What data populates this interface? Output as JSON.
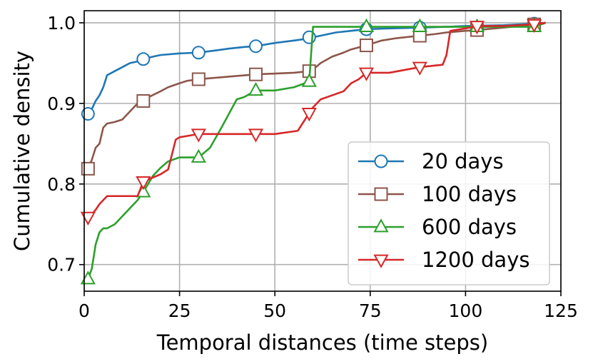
{
  "chart_data": {
    "type": "line",
    "xlabel": "Temporal distances (time steps)",
    "ylabel": "Cumulative density",
    "xlim": [
      0,
      125
    ],
    "ylim": [
      0.667,
      1.015
    ],
    "xticks": [
      0,
      25,
      50,
      75,
      100,
      125
    ],
    "xtick_labels": [
      "0",
      "25",
      "50",
      "75",
      "100",
      "125"
    ],
    "yticks": [
      0.7,
      0.8,
      0.9,
      1.0
    ],
    "ytick_labels": [
      "0.7",
      "0.8",
      "0.9",
      "1.0"
    ],
    "grid": true,
    "legend_position": "lower-right",
    "series": [
      {
        "name": "20 days",
        "color": "#1f77b4",
        "marker": "circle",
        "x": [
          1,
          2,
          3,
          4,
          5,
          6,
          8,
          10,
          12,
          14,
          15.5,
          18,
          20,
          25,
          30,
          35,
          38,
          42,
          45,
          50,
          55,
          58,
          60,
          63,
          66,
          70,
          74,
          80,
          88,
          95,
          100,
          110,
          118,
          121
        ],
        "y": [
          0.887,
          0.893,
          0.903,
          0.91,
          0.92,
          0.935,
          0.94,
          0.945,
          0.95,
          0.952,
          0.955,
          0.958,
          0.96,
          0.962,
          0.963,
          0.966,
          0.968,
          0.97,
          0.971,
          0.975,
          0.978,
          0.98,
          0.982,
          0.985,
          0.988,
          0.99,
          0.992,
          0.993,
          0.994,
          0.995,
          0.996,
          0.997,
          0.999,
          1.0
        ],
        "marker_x": [
          1,
          15.5,
          30,
          45,
          59,
          74,
          88,
          118
        ],
        "marker_y": [
          0.887,
          0.955,
          0.963,
          0.971,
          0.982,
          0.992,
          0.994,
          0.999
        ]
      },
      {
        "name": "100 days",
        "color": "#8c564b",
        "marker": "square",
        "x": [
          1,
          2,
          3,
          4,
          5,
          6,
          8,
          10,
          12,
          13,
          14,
          15.5,
          17,
          20,
          22,
          25,
          27,
          30,
          35,
          40,
          45,
          50,
          55,
          59,
          60,
          62,
          65,
          68,
          70,
          74,
          78,
          82,
          88,
          92,
          95,
          100,
          103,
          110,
          118,
          121
        ],
        "y": [
          0.819,
          0.83,
          0.845,
          0.85,
          0.87,
          0.875,
          0.877,
          0.88,
          0.89,
          0.895,
          0.9,
          0.903,
          0.908,
          0.915,
          0.92,
          0.925,
          0.928,
          0.93,
          0.932,
          0.934,
          0.936,
          0.937,
          0.938,
          0.94,
          0.942,
          0.95,
          0.958,
          0.963,
          0.967,
          0.972,
          0.978,
          0.981,
          0.984,
          0.986,
          0.988,
          0.99,
          0.991,
          0.994,
          0.998,
          1.0
        ],
        "marker_x": [
          1,
          15.5,
          30,
          45,
          59,
          74,
          88,
          103,
          118
        ],
        "marker_y": [
          0.819,
          0.903,
          0.93,
          0.936,
          0.94,
          0.972,
          0.984,
          0.991,
          0.998
        ]
      },
      {
        "name": "600 days",
        "color": "#2ca02c",
        "marker": "triangle-up",
        "x": [
          1,
          2,
          3,
          4,
          5,
          6,
          8,
          10,
          12,
          14,
          15.5,
          18,
          20,
          22,
          25,
          30,
          33,
          36,
          40,
          42,
          45,
          50,
          55,
          59,
          60,
          65,
          70,
          74,
          80,
          88,
          95,
          100,
          103,
          110,
          118,
          121
        ],
        "y": [
          0.682,
          0.695,
          0.725,
          0.74,
          0.745,
          0.745,
          0.75,
          0.76,
          0.77,
          0.78,
          0.79,
          0.81,
          0.82,
          0.828,
          0.833,
          0.833,
          0.845,
          0.87,
          0.905,
          0.908,
          0.916,
          0.916,
          0.92,
          0.927,
          0.995,
          0.995,
          0.995,
          0.995,
          0.995,
          0.995,
          0.995,
          0.995,
          0.995,
          0.995,
          0.995,
          1.0
        ],
        "marker_x": [
          1,
          15.5,
          30,
          45,
          59,
          74,
          88,
          103,
          118
        ],
        "marker_y": [
          0.682,
          0.79,
          0.833,
          0.916,
          0.927,
          0.995,
          0.995,
          0.995,
          0.995
        ]
      },
      {
        "name": "1200 days",
        "color": "#d62728",
        "marker": "triangle-down",
        "x": [
          1,
          2,
          3,
          4,
          5,
          6,
          10,
          14,
          15.5,
          18,
          20,
          22,
          24,
          25,
          30,
          35,
          40,
          45,
          50,
          56,
          59,
          60,
          62,
          65,
          68,
          70,
          72,
          74,
          80,
          88,
          94,
          95,
          96,
          100,
          103,
          110,
          118,
          121
        ],
        "y": [
          0.759,
          0.762,
          0.768,
          0.775,
          0.78,
          0.785,
          0.785,
          0.785,
          0.803,
          0.808,
          0.812,
          0.818,
          0.855,
          0.858,
          0.862,
          0.862,
          0.862,
          0.862,
          0.862,
          0.866,
          0.888,
          0.895,
          0.905,
          0.91,
          0.915,
          0.925,
          0.93,
          0.938,
          0.938,
          0.945,
          0.948,
          0.96,
          0.99,
          0.993,
          0.996,
          0.996,
          0.998,
          1.0
        ],
        "marker_x": [
          1,
          15.5,
          30,
          45,
          59,
          74,
          88,
          103,
          118
        ],
        "marker_y": [
          0.759,
          0.803,
          0.862,
          0.862,
          0.888,
          0.938,
          0.945,
          0.996,
          0.998
        ]
      }
    ]
  }
}
